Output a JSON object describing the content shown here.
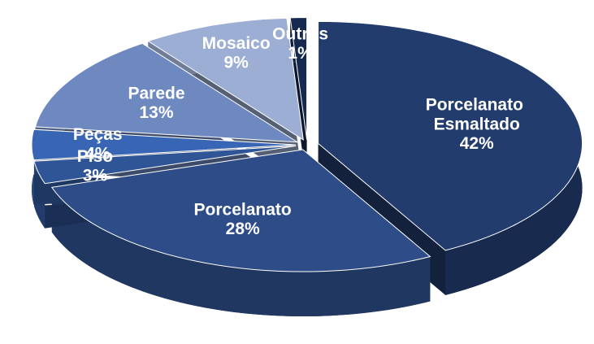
{
  "chart_data": {
    "type": "pie",
    "categories": [
      "Porcelanato Esmaltado",
      "Porcelanato",
      "Piso",
      "Peças",
      "Parede",
      "Mosaico",
      "Outros"
    ],
    "values": [
      42,
      28,
      3,
      4,
      13,
      9,
      1
    ],
    "value_labels": [
      "42%",
      "28%",
      "3%",
      "4%",
      "13%",
      "9%",
      "1%"
    ],
    "colors": [
      "#223c6e",
      "#2d4c88",
      "#2f5597",
      "#3966b4",
      "#6e88c0",
      "#9caed4",
      "#16294f"
    ]
  }
}
